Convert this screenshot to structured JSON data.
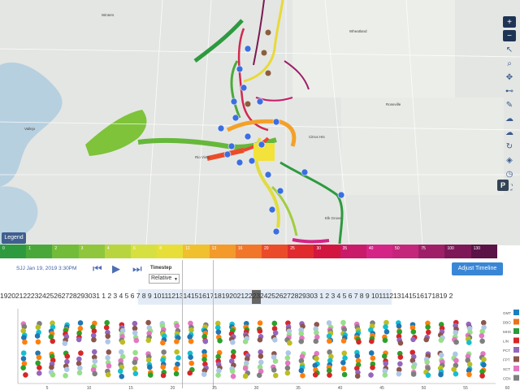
{
  "legend_label": "Legend",
  "scale": {
    "labels": [
      "0",
      "1",
      "2",
      "3",
      "4",
      "6",
      "8",
      "11",
      "13",
      "16",
      "20",
      "25",
      "30",
      "35",
      "40",
      "50",
      "75",
      "100",
      "130"
    ],
    "colors": [
      "#2e9a40",
      "#4aa83a",
      "#72bc3a",
      "#8fc63c",
      "#b8d540",
      "#d6e041",
      "#e7de38",
      "#f0c02e",
      "#f39a2a",
      "#f2762a",
      "#ec4b2a",
      "#e02a2e",
      "#d3163f",
      "#c91b6a",
      "#d42587",
      "#c4267b",
      "#9e1f67",
      "#7d1758",
      "#5b1246"
    ]
  },
  "controls": {
    "timestamp": "SJJ Jan 19, 2019 3:30PM",
    "timestep_label": "Timestep",
    "timestep_value": "Relative",
    "adjust_label": "Adjust Timeline",
    "step_back_icon": "step-back-icon",
    "play_icon": "play-icon",
    "step_forward_icon": "step-forward-icon"
  },
  "timeline_text": "19202122232425262728293031 1 2 3 4 5 6 7 8 9 1011121314151617181920212223242526272829303 1 2 3 4 5 6 7 8 9 10111213141516171819 2",
  "map_tools": [
    "plus-icon",
    "minus-icon",
    "pointer-icon",
    "zoom-icon",
    "pan-icon",
    "measure-icon",
    "pencil-icon",
    "cloud-upload-icon",
    "cloud-download-icon",
    "refresh-icon",
    "layers-icon",
    "clock-icon",
    "fullscreen-icon"
  ],
  "station_labels": [
    "GMT",
    "DBO",
    "MHS",
    "LIN",
    "PCT",
    "FPT",
    "SCT",
    "CEN"
  ],
  "station_colors": [
    "#1a7fc0",
    "#e8731d",
    "#2a9a3a",
    "#d62728",
    "#9467bd",
    "#8c564b",
    "#e377c2",
    "#7f7f7f"
  ],
  "dot_palette": [
    "#e377c2",
    "#7f7f7f",
    "#bcbd22",
    "#17becf",
    "#1f77b4",
    "#ff7f0e",
    "#2ca02c",
    "#d62728",
    "#9467bd",
    "#8c564b",
    "#aec7e8",
    "#98df8a"
  ],
  "dot_axis_ticks": [
    "5",
    "10",
    "15",
    "20",
    "25",
    "30",
    "35",
    "40",
    "45",
    "50",
    "55",
    "60"
  ]
}
